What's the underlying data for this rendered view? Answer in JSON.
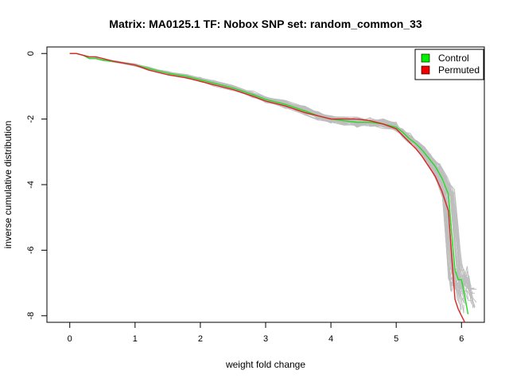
{
  "chart_data": {
    "type": "line",
    "title": "Matrix: MA0125.1 TF: Nobox SNP set: random_common_33",
    "xlabel": "weight fold change",
    "ylabel": "inverse cumulative distribution",
    "xlim": [
      -0.35,
      6.35
    ],
    "ylim": [
      -8.2,
      0.2
    ],
    "x_ticks": [
      0,
      1,
      2,
      3,
      4,
      5,
      6
    ],
    "y_ticks": [
      0,
      -2,
      -4,
      -6,
      -8
    ],
    "grid": false,
    "legend": {
      "position": "top-right",
      "entries": [
        {
          "name": "Control",
          "color": "#00ee00"
        },
        {
          "name": "Permuted",
          "color": "#ee0000"
        }
      ]
    },
    "background_lines": {
      "count": 45,
      "color": "#bebebe",
      "description_hidden": true
    },
    "series": [
      {
        "name": "Control",
        "color": "#22dd22",
        "x": [
          0,
          0.1,
          0.2,
          0.3,
          0.4,
          0.5,
          0.7,
          1.0,
          1.2,
          1.5,
          1.8,
          2.0,
          2.2,
          2.5,
          2.8,
          3.0,
          3.3,
          3.6,
          3.8,
          4.0,
          4.2,
          4.4,
          4.6,
          4.8,
          5.0,
          5.1,
          5.2,
          5.3,
          5.4,
          5.5,
          5.6,
          5.7,
          5.8,
          5.85,
          5.9,
          5.95,
          6.0,
          6.05,
          6.1,
          6.1
        ],
        "y": [
          0,
          0,
          -0.05,
          -0.15,
          -0.15,
          -0.2,
          -0.25,
          -0.35,
          -0.45,
          -0.6,
          -0.7,
          -0.8,
          -0.9,
          -1.05,
          -1.25,
          -1.4,
          -1.55,
          -1.75,
          -1.9,
          -2.0,
          -2.05,
          -2.1,
          -2.1,
          -2.15,
          -2.25,
          -2.4,
          -2.6,
          -2.75,
          -2.95,
          -3.2,
          -3.45,
          -3.8,
          -4.3,
          -5.5,
          -6.6,
          -6.9,
          -6.9,
          -7.4,
          -7.95,
          -7.95
        ]
      },
      {
        "name": "Permuted",
        "color": "#dd2222",
        "x": [
          0,
          0.1,
          0.2,
          0.3,
          0.4,
          0.5,
          0.7,
          1.0,
          1.2,
          1.5,
          1.8,
          2.0,
          2.2,
          2.5,
          2.8,
          3.0,
          3.3,
          3.6,
          3.8,
          4.0,
          4.2,
          4.4,
          4.6,
          4.8,
          5.0,
          5.1,
          5.2,
          5.3,
          5.4,
          5.5,
          5.6,
          5.7,
          5.8,
          5.85,
          5.9,
          5.95,
          6.0,
          6.05
        ],
        "y": [
          0,
          0,
          -0.05,
          -0.1,
          -0.1,
          -0.15,
          -0.25,
          -0.35,
          -0.5,
          -0.65,
          -0.75,
          -0.85,
          -0.95,
          -1.1,
          -1.3,
          -1.45,
          -1.6,
          -1.8,
          -1.9,
          -2.0,
          -2.0,
          -2.0,
          -2.05,
          -2.15,
          -2.3,
          -2.5,
          -2.7,
          -2.9,
          -3.15,
          -3.45,
          -3.75,
          -4.2,
          -4.8,
          -6.2,
          -7.5,
          -7.8,
          -8.0,
          -8.2
        ]
      }
    ]
  }
}
